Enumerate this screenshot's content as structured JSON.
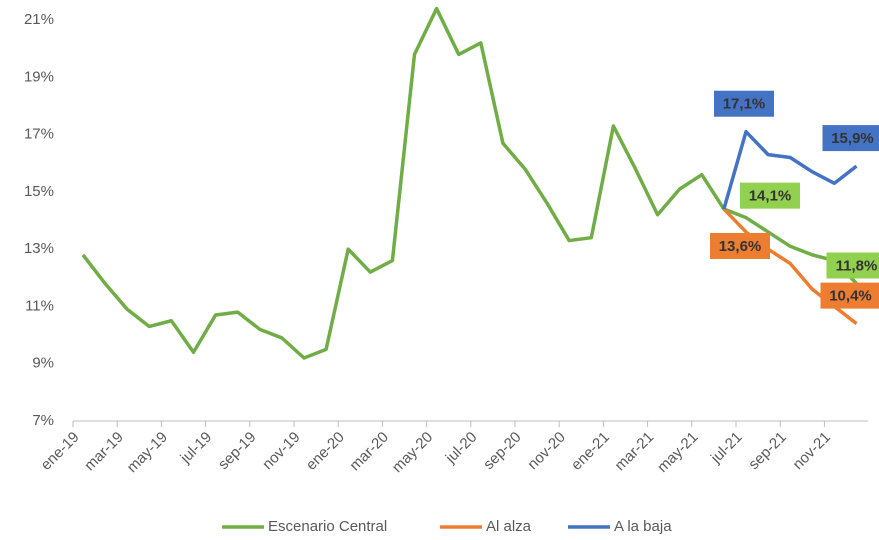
{
  "chart_data": {
    "type": "line",
    "categories": [
      "ene-19",
      null,
      "mar-19",
      null,
      "may-19",
      null,
      "jul-19",
      null,
      "sep-19",
      null,
      "nov-19",
      null,
      "ene-20",
      null,
      "mar-20",
      null,
      "may-20",
      null,
      "jul-20",
      null,
      "sep-20",
      null,
      "nov-20",
      null,
      "ene-21",
      null,
      "mar-21",
      null,
      "may-21",
      null,
      "jul-21",
      null,
      "sep-21",
      null,
      "nov-21",
      null
    ],
    "series": [
      {
        "name": "Escenario Central",
        "color": "#70ad47",
        "values": [
          12.8,
          11.8,
          10.9,
          10.3,
          10.5,
          9.4,
          10.7,
          10.8,
          10.2,
          9.9,
          9.2,
          9.5,
          13.0,
          12.2,
          12.6,
          19.8,
          21.4,
          19.8,
          20.2,
          16.7,
          15.8,
          14.6,
          13.3,
          13.4,
          17.3,
          15.8,
          14.2,
          15.1,
          15.6,
          14.4,
          14.1,
          13.6,
          13.1,
          12.8,
          12.6,
          11.8
        ],
        "value_labels": [
          null,
          null,
          null,
          null,
          null,
          null,
          null,
          null,
          null,
          null,
          null,
          null,
          null,
          null,
          null,
          null,
          null,
          null,
          null,
          null,
          null,
          null,
          null,
          null,
          null,
          null,
          null,
          null,
          null,
          null,
          "14,1%",
          null,
          null,
          null,
          null,
          "11,8%"
        ]
      },
      {
        "name": "Al alza",
        "color": "#ed7d31",
        "values": [
          null,
          null,
          null,
          null,
          null,
          null,
          null,
          null,
          null,
          null,
          null,
          null,
          null,
          null,
          null,
          null,
          null,
          null,
          null,
          null,
          null,
          null,
          null,
          null,
          null,
          null,
          null,
          null,
          null,
          14.4,
          13.6,
          13.0,
          12.5,
          11.6,
          11.0,
          10.4
        ],
        "value_labels": [
          null,
          null,
          null,
          null,
          null,
          null,
          null,
          null,
          null,
          null,
          null,
          null,
          null,
          null,
          null,
          null,
          null,
          null,
          null,
          null,
          null,
          null,
          null,
          null,
          null,
          null,
          null,
          null,
          null,
          null,
          "13,6%",
          null,
          null,
          null,
          null,
          "10,4%"
        ]
      },
      {
        "name": "A la baja",
        "color": "#4472c4",
        "values": [
          null,
          null,
          null,
          null,
          null,
          null,
          null,
          null,
          null,
          null,
          null,
          null,
          null,
          null,
          null,
          null,
          null,
          null,
          null,
          null,
          null,
          null,
          null,
          null,
          null,
          null,
          null,
          null,
          null,
          14.4,
          17.1,
          16.3,
          16.2,
          15.7,
          15.3,
          15.9
        ],
        "value_labels": [
          null,
          null,
          null,
          null,
          null,
          null,
          null,
          null,
          null,
          null,
          null,
          null,
          null,
          null,
          null,
          null,
          null,
          null,
          null,
          null,
          null,
          null,
          null,
          null,
          null,
          null,
          null,
          null,
          null,
          null,
          "17,1%",
          null,
          null,
          null,
          null,
          "15,9%"
        ]
      }
    ],
    "ylim": [
      7,
      21.5
    ],
    "yticks": [
      {
        "value": 7,
        "label": "7%"
      },
      {
        "value": 9,
        "label": "9%"
      },
      {
        "value": 11,
        "label": "11%"
      },
      {
        "value": 13,
        "label": "13%"
      },
      {
        "value": 15,
        "label": "15%"
      },
      {
        "value": 17,
        "label": "17%"
      },
      {
        "value": 19,
        "label": "19%"
      },
      {
        "value": 21,
        "label": "21%"
      }
    ],
    "grid": false,
    "legend": "bottom"
  }
}
